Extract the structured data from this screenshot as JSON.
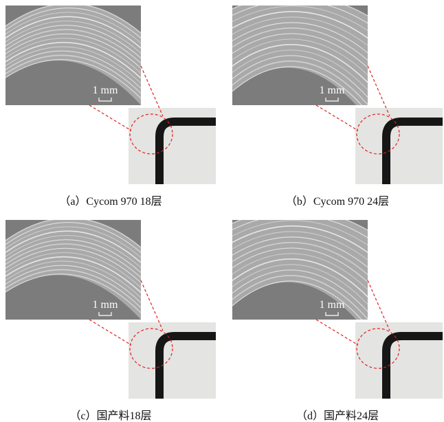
{
  "panels": [
    {
      "caption": "（a）Cycom 970 18层",
      "scale_label": "1 mm"
    },
    {
      "caption": "（b）Cycom 970 24层",
      "scale_label": "1 mm"
    },
    {
      "caption": "（c）国产料18层",
      "scale_label": "1 mm"
    },
    {
      "caption": "（d）国产料24层",
      "scale_label": "1 mm"
    }
  ]
}
